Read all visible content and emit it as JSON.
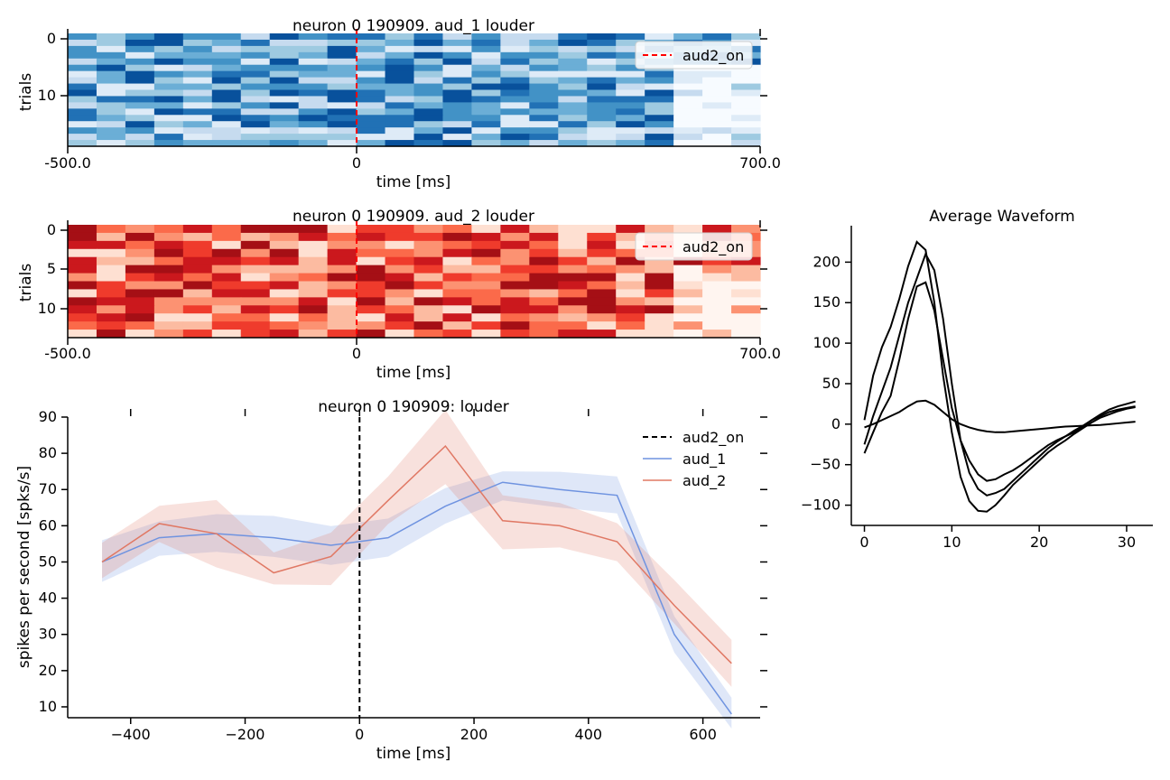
{
  "chart_data": [
    {
      "type": "heatmap",
      "title": "neuron 0 190909. aud_1 louder",
      "xlabel": "time [ms]",
      "ylabel": "trials",
      "colormap": "Blues",
      "xlim": [
        -500,
        700
      ],
      "xtick_labels": [
        "-500.0",
        "0",
        "700.0"
      ],
      "ylim": [
        0,
        18
      ],
      "yticks": [
        0,
        10
      ],
      "n_trials": 18,
      "n_bins": 24,
      "legend": [
        "aud2_on"
      ],
      "legend_position": "top-right",
      "marker": {
        "label": "aud2_on",
        "x": 0,
        "color": "#ff0000",
        "style": "dashed"
      }
    },
    {
      "type": "heatmap",
      "title": "neuron 0 190909. aud_2 louder",
      "xlabel": "time [ms]",
      "ylabel": "trials",
      "colormap": "Reds",
      "xlim": [
        -500,
        700
      ],
      "xtick_labels": [
        "-500.0",
        "0",
        "700.0"
      ],
      "ylim": [
        0,
        13.5
      ],
      "yticks": [
        0,
        5,
        10
      ],
      "n_trials": 14,
      "n_bins": 24,
      "legend": [
        "aud2_on"
      ],
      "legend_position": "top-right",
      "marker": {
        "label": "aud2_on",
        "x": 0,
        "color": "#ff0000",
        "style": "dashed"
      }
    },
    {
      "type": "line",
      "title": "neuron 0 190909: louder",
      "xlabel": "time [ms]",
      "ylabel": "spikes per second [spks/s]",
      "xlim": [
        -510,
        700
      ],
      "ylim": [
        7,
        90
      ],
      "xticks": [
        -400,
        -200,
        0,
        200,
        400,
        600
      ],
      "yticks": [
        10,
        20,
        30,
        40,
        50,
        60,
        70,
        80,
        90
      ],
      "legend_position": "top-right",
      "x": [
        -450,
        -350,
        -250,
        -150,
        -50,
        50,
        150,
        250,
        350,
        450,
        550,
        650
      ],
      "vline": {
        "label": "aud2_on",
        "x": 0,
        "color": "#000000",
        "style": "dashed"
      },
      "series": [
        {
          "name": "aud_1",
          "color": "#6f93e0",
          "values": [
            50,
            56.7,
            57.8,
            56.7,
            54.6,
            56.7,
            65.4,
            72,
            70,
            68.4,
            30,
            8
          ],
          "lower": [
            44.5,
            51.7,
            52.8,
            51.4,
            49.2,
            51.5,
            60.6,
            67,
            65,
            63.4,
            25,
            4
          ],
          "upper": [
            56,
            61.2,
            63.2,
            62.7,
            59.9,
            62,
            70.4,
            75,
            74.9,
            73.6,
            35,
            12.5
          ]
        },
        {
          "name": "aud_2",
          "color": "#e07864",
          "values": [
            50,
            60.6,
            57.8,
            47,
            51.5,
            67,
            82,
            61.4,
            60,
            55.6,
            38,
            22
          ],
          "lower": [
            45.5,
            55.5,
            48.5,
            43.8,
            43.6,
            60.5,
            71.5,
            53.5,
            54,
            50.2,
            33,
            15.5
          ],
          "upper": [
            55.3,
            65.5,
            67.1,
            52.6,
            58.1,
            73.6,
            92,
            68.4,
            66.3,
            60.7,
            45,
            28.5
          ]
        }
      ]
    },
    {
      "type": "line",
      "title": "Average Waveform",
      "xlabel": "",
      "ylabel": "",
      "xlim": [
        -1.5,
        33
      ],
      "ylim": [
        -125,
        245
      ],
      "xticks": [
        0,
        10,
        20,
        30
      ],
      "yticks": [
        -100,
        -50,
        0,
        50,
        100,
        150,
        200
      ],
      "color": "#000000",
      "series": [
        {
          "values": [
            -25,
            10,
            40,
            70,
            110,
            150,
            180,
            210,
            190,
            130,
            50,
            -20,
            -60,
            -80,
            -88,
            -85,
            -80,
            -70,
            -60,
            -50,
            -40,
            -30,
            -22,
            -15,
            -8,
            -2,
            5,
            10,
            15,
            18,
            20,
            22
          ]
        },
        {
          "values": [
            5,
            60,
            95,
            120,
            155,
            195,
            225,
            215,
            150,
            60,
            -10,
            -65,
            -95,
            -107,
            -108,
            -100,
            -88,
            -75,
            -65,
            -55,
            -45,
            -35,
            -27,
            -20,
            -12,
            -5,
            2,
            8,
            12,
            16,
            19,
            21
          ]
        },
        {
          "values": [
            -36,
            -10,
            15,
            35,
            80,
            130,
            170,
            175,
            140,
            80,
            20,
            -20,
            -45,
            -62,
            -70,
            -68,
            -62,
            -57,
            -50,
            -42,
            -34,
            -26,
            -20,
            -15,
            -10,
            -3,
            5,
            12,
            18,
            22,
            25,
            28
          ]
        },
        {
          "values": [
            -4,
            0,
            5,
            10,
            15,
            22,
            28,
            29,
            24,
            15,
            6,
            0,
            -4,
            -7,
            -9,
            -10,
            -10,
            -9,
            -8,
            -7,
            -6,
            -5,
            -4,
            -3,
            -2.5,
            -2,
            -1.5,
            -1,
            0,
            1,
            2,
            3
          ]
        }
      ]
    }
  ]
}
